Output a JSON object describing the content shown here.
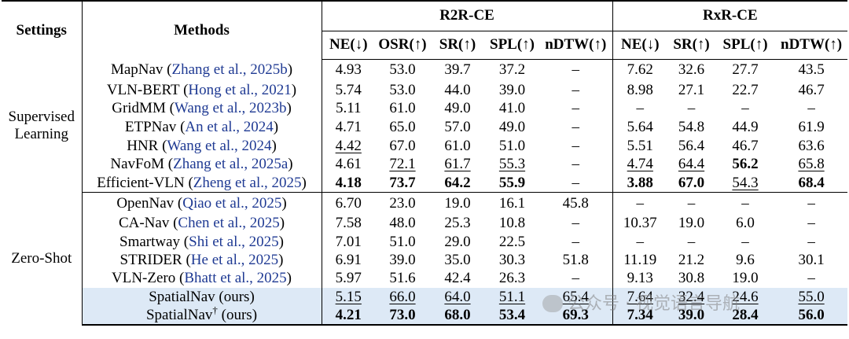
{
  "header": {
    "settings": "Settings",
    "methods": "Methods",
    "group_r2r": "R2R-CE",
    "group_rxr": "RxR-CE",
    "r2r_cols": [
      "NE(↓)",
      "OSR(↑)",
      "SR(↑)",
      "SPL(↑)",
      "nDTW(↑)"
    ],
    "rxr_cols": [
      "NE(↓)",
      "SR(↑)",
      "SPL(↑)",
      "nDTW(↑)"
    ]
  },
  "groups": [
    {
      "label_line1": "Supervised",
      "label_line2": "Learning",
      "rows": [
        {
          "method": "MapNav",
          "cite": "Zhang et al., 2025b",
          "r2r": [
            "4.93",
            "53.0",
            "39.7",
            "37.2",
            "–"
          ],
          "rxr": [
            "7.62",
            "32.6",
            "27.7",
            "43.5"
          ]
        },
        {
          "method": "VLN-BERT",
          "cite": "Hong et al., 2021",
          "r2r": [
            "5.74",
            "53.0",
            "44.0",
            "39.0",
            "–"
          ],
          "rxr": [
            "8.98",
            "27.1",
            "22.7",
            "46.7"
          ]
        },
        {
          "method": "GridMM",
          "cite": "Wang et al., 2023b",
          "r2r": [
            "5.11",
            "61.0",
            "49.0",
            "41.0",
            "–"
          ],
          "rxr": [
            "–",
            "–",
            "–",
            "–"
          ]
        },
        {
          "method": "ETPNav",
          "cite": "An et al., 2024",
          "r2r": [
            "4.71",
            "65.0",
            "57.0",
            "49.0",
            "–"
          ],
          "rxr": [
            "5.64",
            "54.8",
            "44.9",
            "61.9"
          ]
        },
        {
          "method": "HNR",
          "cite": "Wang et al., 2024",
          "r2r": [
            "4.42",
            "67.0",
            "61.0",
            "51.0",
            "–"
          ],
          "rxr": [
            "5.51",
            "56.4",
            "46.7",
            "63.6"
          ]
        },
        {
          "method": "NavFoM",
          "cite": "Zhang et al., 2025a",
          "r2r": [
            "4.61",
            "72.1",
            "61.7",
            "55.3",
            "–"
          ],
          "rxr": [
            "4.74",
            "64.4",
            "56.2",
            "65.8"
          ]
        },
        {
          "method": "Efficient-VLN",
          "cite": "Zheng et al., 2025",
          "r2r": [
            "4.18",
            "73.7",
            "64.2",
            "55.9",
            "–"
          ],
          "rxr": [
            "3.88",
            "67.0",
            "54.3",
            "68.4"
          ]
        }
      ]
    },
    {
      "label_line1": "Zero-Shot",
      "rows": [
        {
          "method": "OpenNav",
          "cite": "Qiao et al., 2025",
          "r2r": [
            "6.70",
            "23.0",
            "19.0",
            "16.1",
            "45.8"
          ],
          "rxr": [
            "–",
            "–",
            "–",
            "–"
          ]
        },
        {
          "method": "CA-Nav",
          "cite": "Chen et al., 2025",
          "r2r": [
            "7.58",
            "48.0",
            "25.3",
            "10.8",
            "–"
          ],
          "rxr": [
            "10.37",
            "19.0",
            "6.0",
            "–"
          ]
        },
        {
          "method": "Smartway",
          "cite": "Shi et al., 2025",
          "r2r": [
            "7.01",
            "51.0",
            "29.0",
            "22.5",
            "–"
          ],
          "rxr": [
            "–",
            "–",
            "–",
            "–"
          ]
        },
        {
          "method": "STRIDER",
          "cite": "He et al., 2025",
          "r2r": [
            "6.91",
            "39.0",
            "35.0",
            "30.3",
            "51.8"
          ],
          "rxr": [
            "11.19",
            "21.2",
            "9.6",
            "30.1"
          ]
        },
        {
          "method": "VLN-Zero",
          "cite": "Bhatt et al., 2025",
          "r2r": [
            "5.97",
            "51.6",
            "42.4",
            "26.3",
            "–"
          ],
          "rxr": [
            "9.13",
            "30.8",
            "19.0",
            "–"
          ]
        },
        {
          "method": "SpatialNav",
          "suffix": " (ours)",
          "r2r": [
            "5.15",
            "66.0",
            "64.0",
            "51.1",
            "65.4"
          ],
          "rxr": [
            "7.64",
            "32.4",
            "24.6",
            "55.0"
          ]
        },
        {
          "method": "SpatialNav",
          "sup": "†",
          "suffix": " (ours)",
          "r2r": [
            "4.21",
            "73.0",
            "68.0",
            "53.4",
            "69.3"
          ],
          "rxr": [
            "7.34",
            "39.0",
            "28.4",
            "56.0"
          ]
        }
      ]
    }
  ],
  "watermark": "公众号 · 视觉语言导航"
}
